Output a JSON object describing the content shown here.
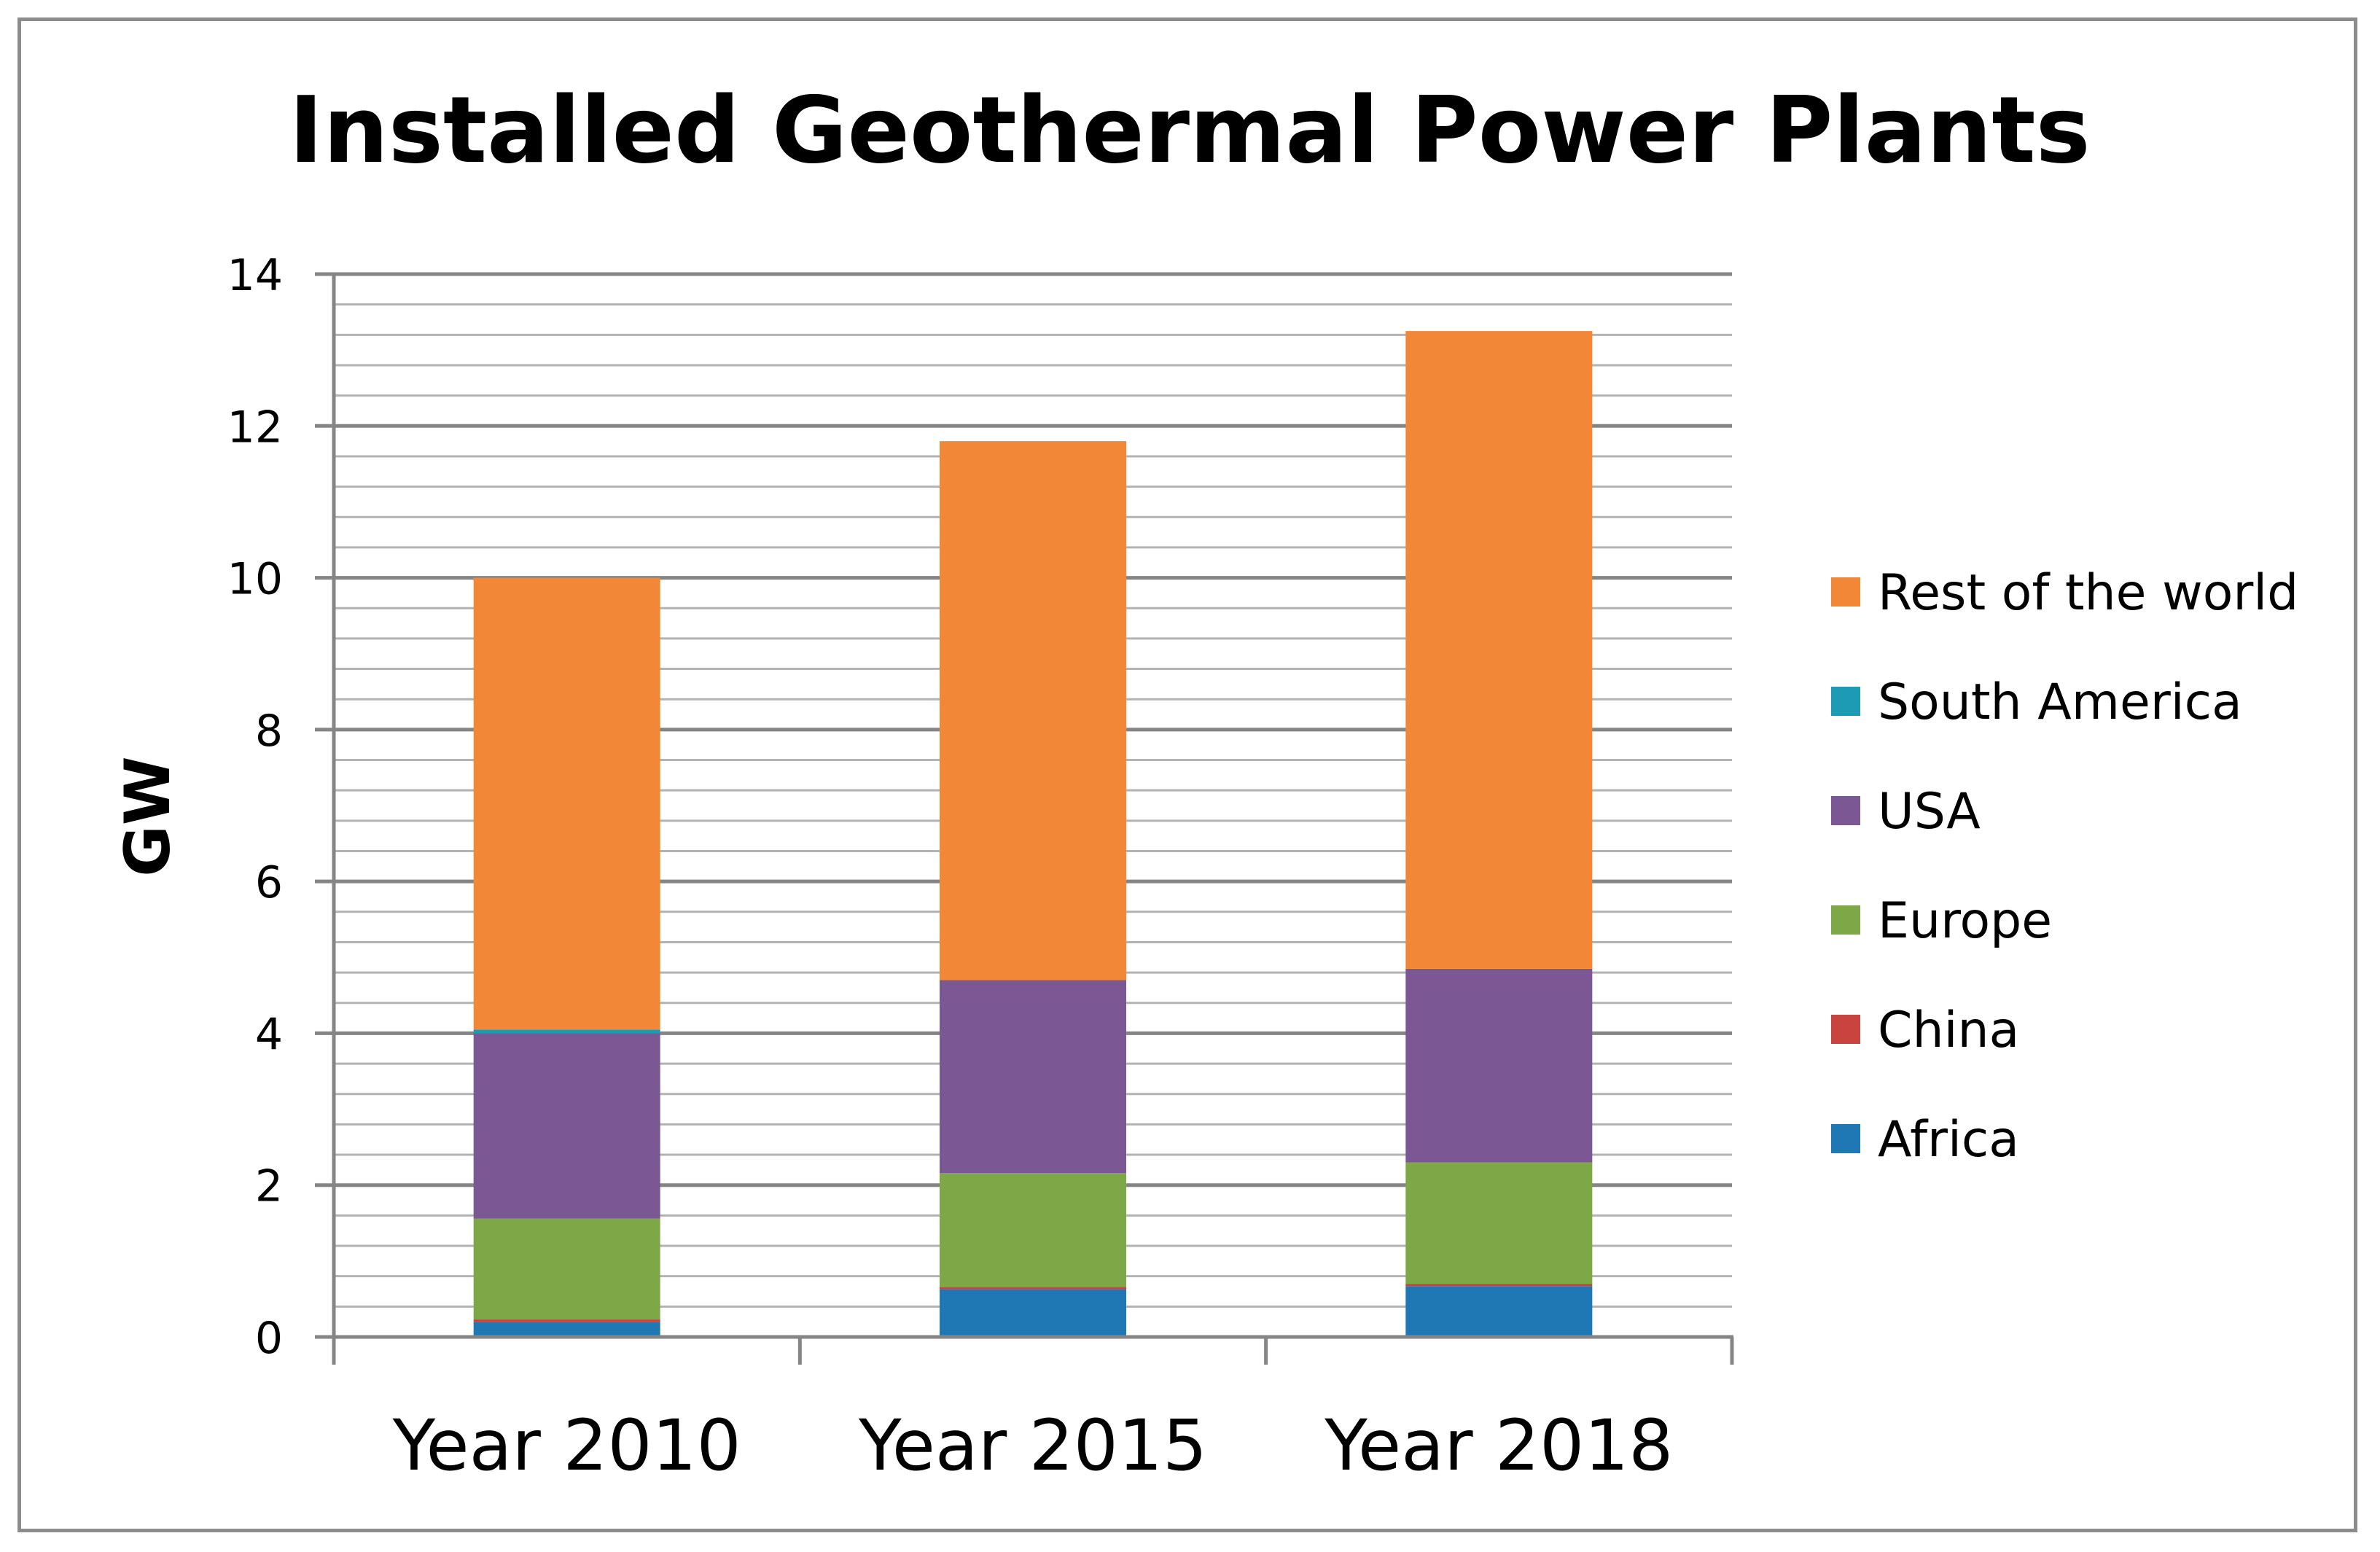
{
  "chart_data": {
    "type": "bar",
    "stacked": true,
    "title": "Installed Geothermal Power Plants",
    "xlabel": "",
    "ylabel": "GW",
    "ylim": [
      0,
      14
    ],
    "yticks": [
      "0",
      "2",
      "4",
      "6",
      "8",
      "10",
      "12",
      "14"
    ],
    "categories": [
      "Year 2010",
      "Year 2015",
      "Year 2018"
    ],
    "legend_position": "right",
    "series": [
      {
        "name": "Africa",
        "color": "#1f78b4",
        "values": [
          0.2,
          0.63,
          0.67
        ]
      },
      {
        "name": "China",
        "color": "#c9443f",
        "values": [
          0.03,
          0.03,
          0.03
        ]
      },
      {
        "name": "Europe",
        "color": "#7ea747",
        "values": [
          1.33,
          1.5,
          1.6
        ]
      },
      {
        "name": "USA",
        "color": "#7b5894",
        "values": [
          2.44,
          2.54,
          2.55
        ]
      },
      {
        "name": "South America",
        "color": "#1d9bb5",
        "values": [
          0.05,
          0.0,
          0.0
        ]
      },
      {
        "name": "Rest of the world",
        "color": "#f28837",
        "values": [
          5.95,
          7.1,
          8.4
        ]
      }
    ]
  }
}
